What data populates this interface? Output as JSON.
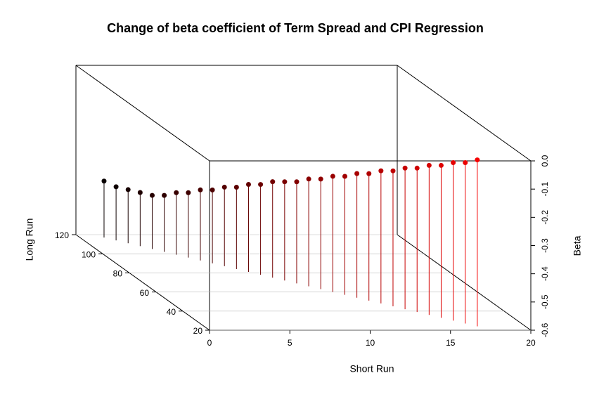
{
  "chart_data": {
    "type": "scatter3d",
    "title": "Change of beta coefficient of Term Spread and CPI Regression",
    "xlabel": "Short Run",
    "ylabel": "Long Run",
    "zlabel": "Beta",
    "xlim": [
      0,
      20
    ],
    "xticks": [
      0,
      5,
      10,
      15,
      20
    ],
    "ylim": [
      20,
      120
    ],
    "yticks": [
      20,
      40,
      60,
      80,
      100,
      120
    ],
    "zlim": [
      -0.6,
      0
    ],
    "zticks": [
      -0.6,
      -0.5,
      -0.4,
      -0.3,
      -0.2,
      -0.1,
      {
        "value": 0,
        "label": "0.0"
      }
    ],
    "grid": true,
    "color_range": [
      "#000000",
      "#ff0000"
    ],
    "x": [
      1.5,
      2,
      2.5,
      3,
      3.5,
      4,
      4.5,
      5,
      5.5,
      6,
      6.5,
      7,
      7.5,
      8,
      8.5,
      9,
      9.5,
      10,
      10.5,
      11,
      11.5,
      12,
      12.5,
      13,
      13.5,
      14,
      14.5,
      15,
      15.5,
      16,
      16.5,
      17
    ],
    "y": [
      117,
      114,
      111,
      108,
      105,
      102,
      99,
      96,
      93,
      90,
      87,
      84,
      81,
      78,
      75,
      72,
      69,
      66,
      63,
      60,
      57,
      54,
      51,
      48,
      45,
      42,
      39,
      36,
      33,
      30,
      27,
      24
    ],
    "z": [
      -0.4,
      -0.41,
      -0.41,
      -0.41,
      -0.41,
      -0.4,
      -0.38,
      -0.37,
      -0.35,
      -0.34,
      -0.32,
      -0.31,
      -0.29,
      -0.28,
      -0.26,
      -0.25,
      -0.24,
      -0.22,
      -0.21,
      -0.19,
      -0.18,
      -0.16,
      -0.15,
      -0.13,
      -0.12,
      -0.1,
      -0.09,
      -0.07,
      -0.06,
      -0.04,
      -0.03,
      -0.01
    ]
  }
}
